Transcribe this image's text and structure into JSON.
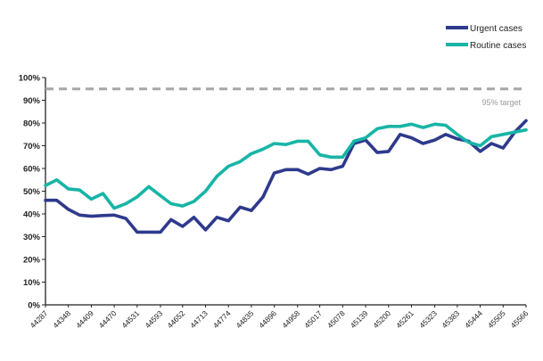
{
  "chart_data": {
    "type": "line",
    "x": [
      44287,
      44317,
      44348,
      44378,
      44409,
      44440,
      44470,
      44501,
      44531,
      44562,
      44593,
      44621,
      44652,
      44682,
      44713,
      44743,
      44774,
      44805,
      44835,
      44866,
      44896,
      44927,
      44958,
      44986,
      45017,
      45047,
      45078,
      45108,
      45139,
      45170,
      45200,
      45231,
      45261,
      45292,
      45323,
      45352,
      45383,
      45413,
      45444,
      45474,
      45505,
      45536,
      45566
    ],
    "x_tick_labels": [
      "44287",
      "44348",
      "44409",
      "44470",
      "44531",
      "44593",
      "44652",
      "44713",
      "44774",
      "44835",
      "44896",
      "44958",
      "45017",
      "45078",
      "45139",
      "45200",
      "45261",
      "45323",
      "45383",
      "45444",
      "45505",
      "45566"
    ],
    "y_tick_labels": [
      "0%",
      "10%",
      "20%",
      "30%",
      "40%",
      "50%",
      "60%",
      "70%",
      "80%",
      "90%",
      "100%"
    ],
    "ylim": [
      0,
      100
    ],
    "series": [
      {
        "name": "Urgent cases",
        "color": "#2e3a8c",
        "values": [
          46,
          46,
          42,
          39.5,
          39,
          39.3,
          39.5,
          38,
          32,
          32,
          32,
          37.5,
          34.5,
          38.5,
          33,
          38.5,
          37,
          43,
          41.5,
          47.5,
          58,
          59.5,
          59.5,
          57.5,
          60,
          59.5,
          61,
          71,
          72.5,
          67,
          67.5,
          75,
          73.5,
          71,
          72.5,
          75,
          73,
          72,
          67.5,
          71,
          69,
          76,
          81
        ]
      },
      {
        "name": "Routine cases",
        "color": "#17b5a6",
        "values": [
          52.5,
          55,
          51,
          50.5,
          46.5,
          49,
          42.5,
          44.5,
          47.5,
          52,
          48,
          44.5,
          43.5,
          45.5,
          50,
          56.5,
          61,
          63,
          66.5,
          68.5,
          71,
          70.5,
          72,
          72,
          66,
          65,
          65,
          72,
          73.5,
          77.5,
          78.5,
          78.5,
          79.5,
          78,
          79.5,
          79,
          75,
          71.5,
          70,
          74,
          75,
          76,
          77
        ]
      }
    ],
    "target": {
      "value": 95,
      "label": "95% target",
      "color": "#a6a6a6"
    },
    "legend_position": "top-right",
    "grid": false
  }
}
